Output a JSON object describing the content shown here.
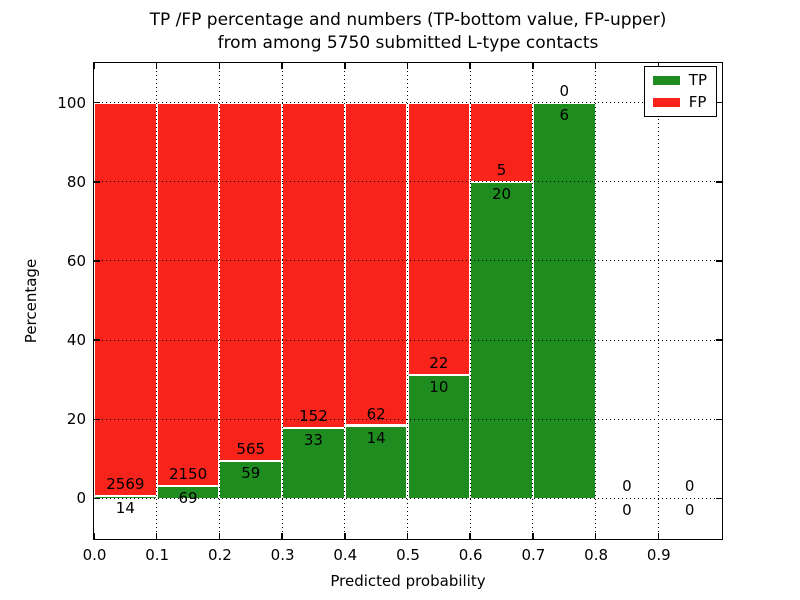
{
  "figure": {
    "title_line1": "TP /FP percentage and numbers (TP-bottom value, FP-upper)",
    "title_line2": "from among 5750 submitted L-type contacts"
  },
  "chart_data": {
    "type": "bar",
    "stacked": true,
    "orientation": "vertical",
    "title": "TP /FP percentage and numbers (TP-bottom value, FP-upper) from among 5750 submitted L-type contacts",
    "xlabel": "Predicted probability",
    "ylabel": "Percentage",
    "xlim": [
      0.0,
      1.0
    ],
    "ylim": [
      -10,
      110
    ],
    "grid": "dotted black, both axes, drawn above bars",
    "bar_edge_color": "#ffffff",
    "bin_width": 0.1,
    "bins_start": [
      0.0,
      0.1,
      0.2,
      0.3,
      0.4,
      0.5,
      0.6,
      0.7,
      0.8,
      0.9
    ],
    "x_tick_labels": [
      "0.0",
      "0.1",
      "0.2",
      "0.3",
      "0.4",
      "0.5",
      "0.6",
      "0.7",
      "0.8",
      "0.9"
    ],
    "y_tick_values": [
      0,
      20,
      40,
      60,
      80,
      100
    ],
    "y_tick_labels": [
      "0",
      "20",
      "40",
      "60",
      "80",
      "100"
    ],
    "legend": {
      "position": "upper right",
      "entries": [
        "TP",
        "FP"
      ]
    },
    "series": [
      {
        "name": "TP",
        "color": "#1e8c1e",
        "position": "bottom",
        "counts": [
          14,
          69,
          59,
          33,
          14,
          10,
          20,
          6,
          0,
          0
        ],
        "percent": [
          0.54,
          3.11,
          9.46,
          17.84,
          18.42,
          31.25,
          80.0,
          100.0,
          0.0,
          0.0
        ]
      },
      {
        "name": "FP",
        "color": "#f8241c",
        "position": "top",
        "counts": [
          2569,
          2150,
          565,
          152,
          62,
          22,
          5,
          0,
          0,
          0
        ],
        "percent": [
          99.46,
          96.89,
          90.54,
          82.16,
          81.58,
          68.75,
          20.0,
          0.0,
          0.0,
          0.0
        ]
      }
    ]
  }
}
